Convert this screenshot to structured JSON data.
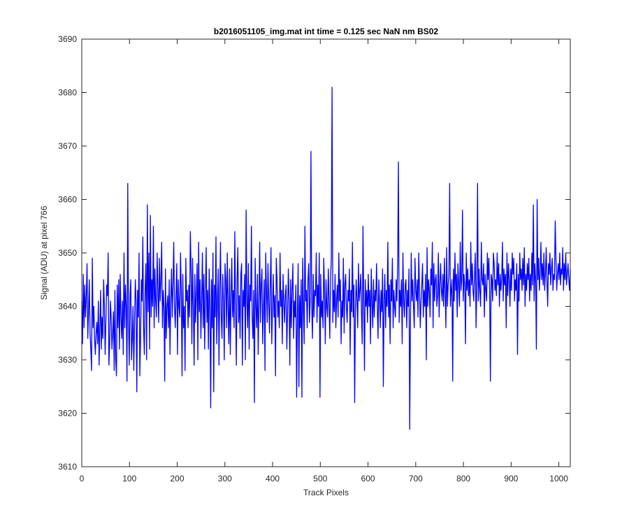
{
  "chart_data": {
    "type": "line",
    "title": "b2016051105_img.mat int time = 0.125 sec  NaN nm BS02",
    "xlabel": "Track Pixels",
    "ylabel": "Signal (ADU) at pixel 766",
    "xlim": [
      0,
      1024
    ],
    "ylim": [
      3610,
      3690
    ],
    "xticks": [
      0,
      100,
      200,
      300,
      400,
      500,
      600,
      700,
      800,
      900,
      1000
    ],
    "yticks": [
      3610,
      3620,
      3630,
      3640,
      3650,
      3660,
      3670,
      3680,
      3690
    ],
    "grid": false,
    "legend": "none",
    "series_color": "#0000ff",
    "series": [
      {
        "values": [
          3641,
          3633,
          3646,
          3636,
          3644,
          3638,
          3642,
          3648,
          3634,
          3639,
          3645,
          3635,
          3632,
          3628,
          3649,
          3636,
          3640,
          3634,
          3631,
          3635,
          3637,
          3633,
          3641,
          3629,
          3636,
          3643,
          3632,
          3638,
          3634,
          3645,
          3640,
          3631,
          3637,
          3644,
          3642,
          3650,
          3629,
          3633,
          3641,
          3638,
          3632,
          3635,
          3639,
          3628,
          3643,
          3630,
          3627,
          3644,
          3636,
          3645,
          3632,
          3646,
          3638,
          3634,
          3641,
          3631,
          3650,
          3636,
          3644,
          3640,
          3626,
          3663,
          3638,
          3629,
          3642,
          3645,
          3630,
          3634,
          3640,
          3628,
          3637,
          3645,
          3641,
          3624,
          3643,
          3638,
          3650,
          3627,
          3634,
          3645,
          3641,
          3653,
          3636,
          3631,
          3643,
          3648,
          3630,
          3659,
          3639,
          3650,
          3632,
          3657,
          3638,
          3645,
          3640,
          3655,
          3636,
          3647,
          3641,
          3638,
          3650,
          3643,
          3637,
          3649,
          3641,
          3645,
          3652,
          3636,
          3643,
          3640,
          3626,
          3647,
          3634,
          3640,
          3642,
          3636,
          3645,
          3631,
          3641,
          3647,
          3638,
          3644,
          3652,
          3640,
          3636,
          3642,
          3648,
          3631,
          3645,
          3640,
          3638,
          3650,
          3643,
          3627,
          3646,
          3636,
          3640,
          3628,
          3649,
          3641,
          3643,
          3636,
          3644,
          3638,
          3654,
          3647,
          3633,
          3649,
          3640,
          3629,
          3646,
          3637,
          3642,
          3648,
          3630,
          3652,
          3639,
          3645,
          3634,
          3641,
          3650,
          3636,
          3646,
          3632,
          3642,
          3651,
          3637,
          3643,
          3632,
          3647,
          3640,
          3621,
          3645,
          3636,
          3650,
          3624,
          3644,
          3638,
          3653,
          3633,
          3641,
          3647,
          3629,
          3643,
          3652,
          3638,
          3634,
          3646,
          3641,
          3630,
          3648,
          3645,
          3636,
          3650,
          3640,
          3633,
          3647,
          3631,
          3642,
          3649,
          3638,
          3643,
          3636,
          3654,
          3640,
          3629,
          3645,
          3651,
          3637,
          3642,
          3634,
          3646,
          3648,
          3629,
          3643,
          3640,
          3646,
          3630,
          3658,
          3641,
          3636,
          3648,
          3632,
          3644,
          3641,
          3655,
          3638,
          3634,
          3643,
          3622,
          3649,
          3640,
          3636,
          3646,
          3631,
          3641,
          3652,
          3637,
          3644,
          3647,
          3633,
          3640,
          3645,
          3628,
          3650,
          3643,
          3637,
          3648,
          3641,
          3635,
          3644,
          3651,
          3633,
          3640,
          3646,
          3638,
          3642,
          3627,
          3649,
          3645,
          3638,
          3641,
          3636,
          3650,
          3640,
          3643,
          3633,
          3646,
          3641,
          3637,
          3642,
          3644,
          3632,
          3639,
          3647,
          3641,
          3629,
          3645,
          3636,
          3643,
          3648,
          3634,
          3641,
          3638,
          3644,
          3623,
          3638,
          3648,
          3625,
          3642,
          3636,
          3645,
          3623,
          3649,
          3640,
          3633,
          3655,
          3641,
          3643,
          3636,
          3645,
          3648,
          3637,
          3641,
          3669,
          3640,
          3634,
          3646,
          3638,
          3643,
          3642,
          3650,
          3637,
          3644,
          3640,
          3650,
          3623,
          3646,
          3638,
          3641,
          3636,
          3649,
          3643,
          3633,
          3645,
          3640,
          3638,
          3647,
          3641,
          3634,
          3645,
          3649,
          3681,
          3637,
          3643,
          3639,
          3646,
          3636,
          3641,
          3644,
          3638,
          3650,
          3641,
          3645,
          3633,
          3641,
          3638,
          3649,
          3635,
          3644,
          3646,
          3640,
          3637,
          3643,
          3641,
          3647,
          3631,
          3643,
          3639,
          3652,
          3638,
          3644,
          3622,
          3640,
          3645,
          3641,
          3636,
          3648,
          3641,
          3643,
          3646,
          3639,
          3633,
          3655,
          3641,
          3628,
          3645,
          3640,
          3643,
          3637,
          3646,
          3640,
          3643,
          3633,
          3647,
          3641,
          3636,
          3645,
          3638,
          3643,
          3641,
          3648,
          3640,
          3634,
          3645,
          3641,
          3636,
          3643,
          3639,
          3647,
          3625,
          3641,
          3646,
          3636,
          3643,
          3640,
          3652,
          3638,
          3644,
          3633,
          3645,
          3641,
          3649,
          3636,
          3643,
          3640,
          3638,
          3645,
          3641,
          3648,
          3667,
          3637,
          3643,
          3640,
          3645,
          3633,
          3650,
          3641,
          3638,
          3644,
          3645,
          3636,
          3643,
          3640,
          3647,
          3617,
          3637,
          3650,
          3641,
          3645,
          3640,
          3636,
          3649,
          3643,
          3641,
          3645,
          3638,
          3650,
          3643,
          3636,
          3641,
          3644,
          3648,
          3638,
          3643,
          3640,
          3646,
          3630,
          3651,
          3640,
          3645,
          3643,
          3638,
          3647,
          3644,
          3652,
          3636,
          3648,
          3641,
          3645,
          3646,
          3640,
          3642,
          3650,
          3638,
          3644,
          3648,
          3643,
          3641,
          3646,
          3640,
          3649,
          3643,
          3636,
          3651,
          3640,
          3644,
          3646,
          3663,
          3640,
          3643,
          3645,
          3626,
          3647,
          3641,
          3650,
          3643,
          3646,
          3638,
          3648,
          3644,
          3640,
          3652,
          3643,
          3645,
          3658,
          3641,
          3646,
          3644,
          3633,
          3650,
          3643,
          3647,
          3642,
          3645,
          3640,
          3652,
          3644,
          3648,
          3643,
          3641,
          3646,
          3650,
          3636,
          3644,
          3663,
          3641,
          3647,
          3643,
          3640,
          3652,
          3645,
          3644,
          3648,
          3638,
          3646,
          3643,
          3641,
          3650,
          3645,
          3649,
          3643,
          3626,
          3646,
          3645,
          3641,
          3650,
          3648,
          3643,
          3645,
          3642,
          3650,
          3644,
          3648,
          3640,
          3646,
          3643,
          3645,
          3652,
          3641,
          3647,
          3644,
          3646,
          3636,
          3650,
          3642,
          3648,
          3645,
          3640,
          3647,
          3643,
          3650,
          3646,
          3649,
          3641,
          3645,
          3643,
          3648,
          3631,
          3646,
          3641,
          3650,
          3645,
          3647,
          3643,
          3649,
          3644,
          3651,
          3640,
          3646,
          3643,
          3648,
          3645,
          3649,
          3641,
          3646,
          3643,
          3650,
          3644,
          3659,
          3641,
          3648,
          3645,
          3632,
          3660,
          3645,
          3649,
          3643,
          3646,
          3652,
          3645,
          3648,
          3644,
          3650,
          3643,
          3646,
          3651,
          3645,
          3640,
          3648,
          3646,
          3650,
          3644,
          3647,
          3649,
          3643,
          3646,
          3645,
          3656,
          3649,
          3643,
          3646,
          3648,
          3645,
          3650,
          3644,
          3647,
          3646,
          3651,
          3643,
          3648,
          3645,
          3650,
          3644,
          3646,
          3648,
          3645,
          3643,
          3647
        ]
      }
    ]
  }
}
